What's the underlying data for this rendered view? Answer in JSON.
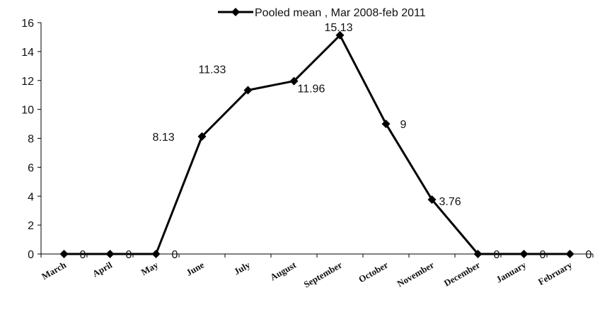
{
  "chart_data": {
    "type": "line",
    "title": "",
    "xlabel": "",
    "ylabel": "",
    "ylim": [
      0,
      16
    ],
    "yticks": [
      "0",
      "2",
      "4",
      "6",
      "8",
      "10",
      "12",
      "14",
      "16"
    ],
    "categories": [
      "March",
      "April",
      "May",
      "June",
      "July",
      "August",
      "September",
      "October",
      "November",
      "December",
      "January",
      "February"
    ],
    "series": [
      {
        "name": "Pooled mean , Mar 2008-feb 2011",
        "values": [
          0,
          0,
          0,
          8.13,
          11.33,
          11.96,
          15.13,
          9,
          3.76,
          0,
          0,
          0
        ],
        "labels": [
          "0",
          "0",
          "0",
          "8.13",
          "11.33",
          "11.96",
          "15.13",
          "9",
          "3.76",
          "0",
          "0",
          "0"
        ]
      }
    ],
    "legend": "top",
    "grid": false,
    "colors": {
      "series": "#000000"
    }
  }
}
